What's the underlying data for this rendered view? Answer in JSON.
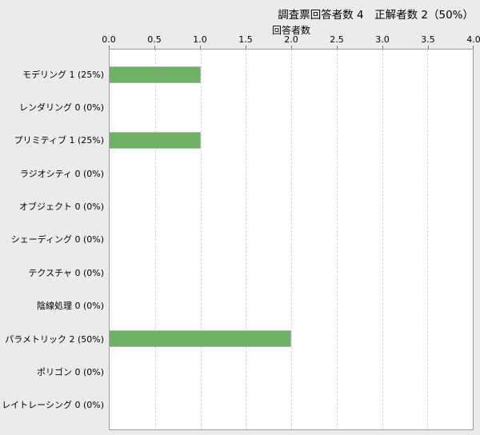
{
  "title": "調査票回答者数 4　正解者数 2（50%）",
  "chart_data": {
    "type": "bar",
    "orientation": "horizontal",
    "title": "調査票回答者数 4　正解者数 2（50%）",
    "xlabel": "回答者数",
    "ylabel": "",
    "xlim": [
      0,
      4
    ],
    "xticks": [
      "0.0",
      "0.5",
      "1.0",
      "1.5",
      "2.0",
      "2.5",
      "3.0",
      "3.5",
      "4.0"
    ],
    "grid": "vertical dashed gridlines at every 0.5",
    "legend": "none",
    "categories": [
      "モデリング",
      "レンダリング",
      "プリミティブ",
      "ラジオシティ",
      "オブジェクト",
      "シェーディング",
      "テクスチャ",
      "陰線処理",
      "パラメトリック",
      "ポリゴン",
      "レイトレーシング"
    ],
    "category_labels": [
      "モデリング 1 (25%)",
      "レンダリング 0 (0%)",
      "プリミティブ 1 (25%)",
      "ラジオシティ 0 (0%)",
      "オブジェクト 0 (0%)",
      "シェーディング 0 (0%)",
      "テクスチャ 0 (0%)",
      "陰線処理 0 (0%)",
      "パラメトリック 2 (50%)",
      "ポリゴン 0 (0%)",
      "レイトレーシング 0 (0%)"
    ],
    "values": [
      1,
      0,
      1,
      0,
      0,
      0,
      0,
      0,
      2,
      0,
      0
    ]
  },
  "colors": {
    "page_bg": "#ebebeb",
    "plot_bg": "#ffffff",
    "plot_border": "#9e9e9e",
    "grid_color": "#d6d6d6",
    "bar_color": "#6fb166",
    "tick_color": "#7a7a7a"
  }
}
